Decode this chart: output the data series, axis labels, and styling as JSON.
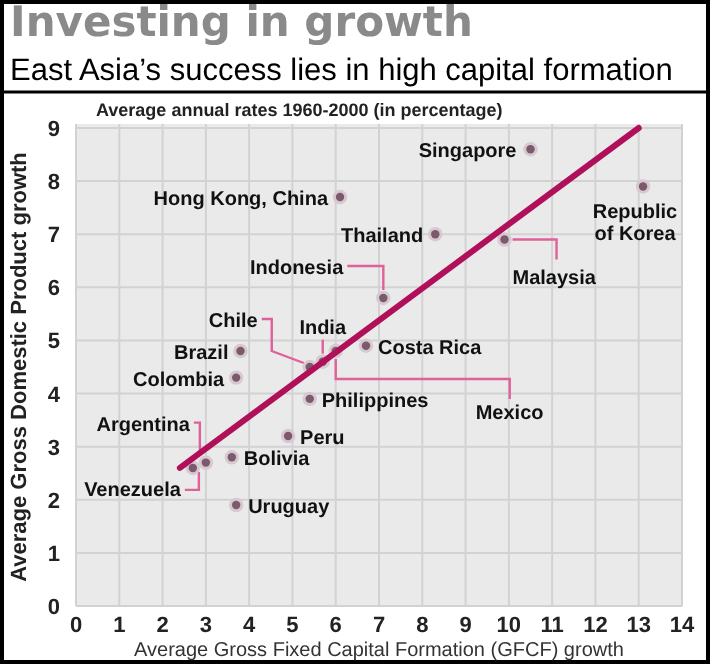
{
  "chart_data": {
    "type": "scatter",
    "title": "Investing in growth",
    "subtitle": "East Asia’s success lies in high capital formation",
    "xlabel": "Average Gross Fixed Capital Formation (GFCF) growth",
    "ylabel": "Average Gross Domestic Product growth",
    "xlim": [
      0,
      14
    ],
    "ylim": [
      0,
      9
    ],
    "xticks": [
      0,
      1,
      2,
      3,
      4,
      5,
      6,
      7,
      8,
      9,
      10,
      11,
      12,
      13,
      14
    ],
    "yticks": [
      0,
      1,
      2,
      3,
      4,
      5,
      6,
      7,
      8,
      9
    ],
    "grid": true,
    "series": [
      {
        "marker": "circle",
        "color": "#7a5a6c",
        "x": [
          10.5,
          6.1,
          8.3,
          7.1,
          13.1,
          9.9,
          6.7,
          5.4,
          5.7,
          6.0,
          3.8,
          3.7,
          5.4,
          4.9,
          3.6,
          3.7,
          3.0,
          2.7
        ],
        "values": [
          8.6,
          7.7,
          7.0,
          5.8,
          7.9,
          6.9,
          4.9,
          4.5,
          4.6,
          4.8,
          4.8,
          4.3,
          3.9,
          3.2,
          2.8,
          1.9,
          2.7,
          2.6
        ]
      },
      {
        "type": "line",
        "color": "#b0105a",
        "x": [
          2.4,
          13
        ],
        "values": [
          2.6,
          9
        ]
      }
    ],
    "annotations": [
      "Average annual rates 1960-2000 (in percentage)",
      {
        "text": "Singapore",
        "x": 10.5,
        "y": 8.6
      },
      {
        "text": "Hong Kong, China",
        "x": 6.1,
        "y": 7.7
      },
      {
        "text": "Thailand",
        "x": 8.3,
        "y": 7.0
      },
      {
        "text": "Indonesia",
        "x": 7.1,
        "y": 5.8
      },
      {
        "text": "Republic of Korea",
        "x": 13.1,
        "y": 7.9
      },
      {
        "text": "Malaysia",
        "x": 9.9,
        "y": 6.9
      },
      {
        "text": "Costa Rica",
        "x": 6.7,
        "y": 4.9
      },
      {
        "text": "Chile",
        "x": 5.4,
        "y": 4.5
      },
      {
        "text": "India",
        "x": 5.7,
        "y": 4.6
      },
      {
        "text": "Mexico",
        "x": 6.0,
        "y": 4.8
      },
      {
        "text": "Brazil",
        "x": 3.8,
        "y": 4.8
      },
      {
        "text": "Colombia",
        "x": 3.7,
        "y": 4.3
      },
      {
        "text": "Philippines",
        "x": 5.4,
        "y": 3.9
      },
      {
        "text": "Peru",
        "x": 4.9,
        "y": 3.2
      },
      {
        "text": "Bolivia",
        "x": 3.6,
        "y": 2.8
      },
      {
        "text": "Uruguay",
        "x": 3.7,
        "y": 1.9
      },
      {
        "text": "Argentina",
        "x": 3.0,
        "y": 2.7
      },
      {
        "text": "Venezuela",
        "x": 2.7,
        "y": 2.6
      }
    ]
  }
}
